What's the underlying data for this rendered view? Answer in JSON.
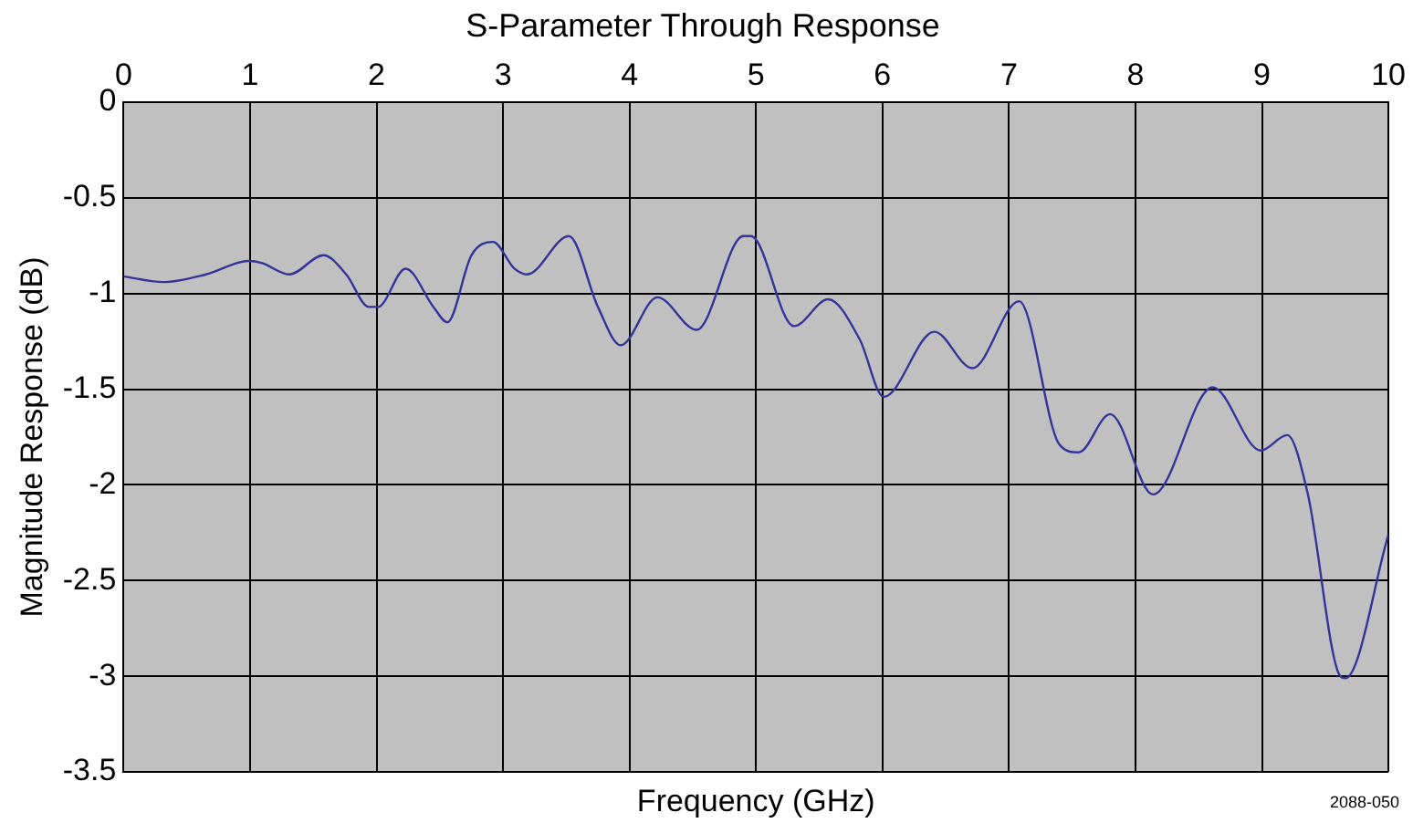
{
  "chart_data": {
    "type": "line",
    "title": "S-Parameter Through Response",
    "xlabel": "Frequency (GHz)",
    "ylabel": "Magnitude Response (dB)",
    "annotations": [
      "2088-050"
    ],
    "x": [
      0,
      0.31,
      0.65,
      0.99,
      1.09,
      1.31,
      1.58,
      1.76,
      1.94,
      2.01,
      2.23,
      2.45,
      2.56,
      2.75,
      2.92,
      3.09,
      3.19,
      3.52,
      3.75,
      3.93,
      4.22,
      4.53,
      4.9,
      4.96,
      5.3,
      5.57,
      5.82,
      6.01,
      6.41,
      6.71,
      7.08,
      7.4,
      7.55,
      7.8,
      8.14,
      8.61,
      8.99,
      9.2,
      9.36,
      9.62,
      9.66,
      10
    ],
    "series": [
      {
        "color": "#333399",
        "values": [
          -0.91,
          -0.94,
          -0.9,
          -0.83,
          -0.84,
          -0.9,
          -0.8,
          -0.9,
          -1.07,
          -1.07,
          -0.87,
          -1.07,
          -1.15,
          -0.8,
          -0.73,
          -0.87,
          -0.9,
          -0.7,
          -1.07,
          -1.27,
          -1.02,
          -1.19,
          -0.7,
          -0.7,
          -1.17,
          -1.03,
          -1.24,
          -1.54,
          -1.2,
          -1.39,
          -1.04,
          -1.79,
          -1.83,
          -1.63,
          -2.05,
          -1.49,
          -1.82,
          -1.74,
          -2.04,
          -3.0,
          -3.01,
          -2.26
        ]
      }
    ],
    "xlim": [
      0,
      10
    ],
    "xticks": [
      0,
      1,
      2,
      3,
      4,
      5,
      6,
      7,
      8,
      9,
      10
    ],
    "ylim": [
      -3.5,
      0
    ],
    "yticks": [
      0,
      -0.5,
      -1,
      -1.5,
      -2,
      -2.5,
      -3,
      -3.5
    ],
    "grid": true,
    "legend": false,
    "marker": "none",
    "line_style": "solid"
  }
}
